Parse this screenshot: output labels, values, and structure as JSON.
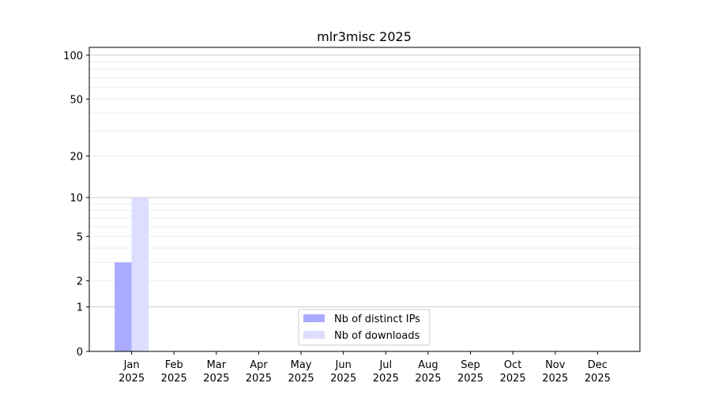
{
  "chart_data": {
    "type": "bar",
    "title": "mlr3misc 2025",
    "xlabel": "",
    "ylabel": "",
    "y_scale": "symlog",
    "ylim": [
      0,
      113
    ],
    "yticks": [
      0,
      1,
      2,
      5,
      10,
      20,
      50,
      100
    ],
    "grid": true,
    "legend_position": "lower center",
    "categories": [
      {
        "month": "Jan",
        "year": "2025"
      },
      {
        "month": "Feb",
        "year": "2025"
      },
      {
        "month": "Mar",
        "year": "2025"
      },
      {
        "month": "Apr",
        "year": "2025"
      },
      {
        "month": "May",
        "year": "2025"
      },
      {
        "month": "Jun",
        "year": "2025"
      },
      {
        "month": "Jul",
        "year": "2025"
      },
      {
        "month": "Aug",
        "year": "2025"
      },
      {
        "month": "Sep",
        "year": "2025"
      },
      {
        "month": "Oct",
        "year": "2025"
      },
      {
        "month": "Nov",
        "year": "2025"
      },
      {
        "month": "Dec",
        "year": "2025"
      }
    ],
    "series": [
      {
        "name": "Nb of distinct IPs",
        "color": "#aaaaff",
        "values": [
          3,
          0,
          0,
          0,
          0,
          0,
          0,
          0,
          0,
          0,
          0,
          0
        ]
      },
      {
        "name": "Nb of downloads",
        "color": "#ddddff",
        "values": [
          10,
          0,
          0,
          0,
          0,
          0,
          0,
          0,
          0,
          0,
          0,
          0
        ]
      }
    ]
  }
}
